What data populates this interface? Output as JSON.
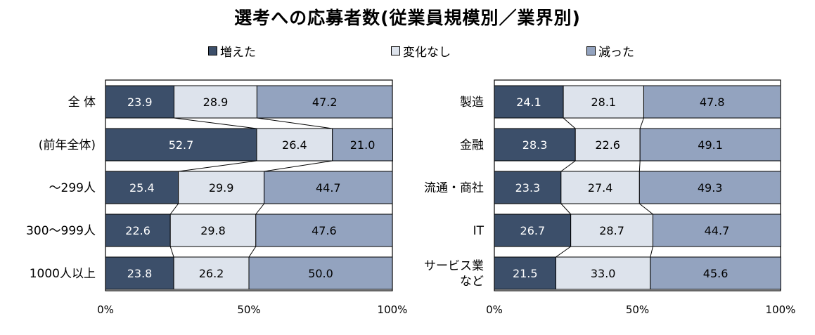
{
  "title": "選考への応募者数(従業員規模別／業界別)",
  "legend": [
    {
      "label": "増えた",
      "color": "#3c4f6a"
    },
    {
      "label": "変化なし",
      "color": "#dde3ec"
    },
    {
      "label": "減った",
      "color": "#93a3bf"
    }
  ],
  "chart_data": [
    {
      "type": "bar",
      "orientation": "horizontal-stacked-100",
      "series_names": [
        "増えた",
        "変化なし",
        "減った"
      ],
      "categories": [
        "全 体",
        "(前年全体)",
        "～299人",
        "300～999人",
        "1000人以上"
      ],
      "series": [
        {
          "name": "増えた",
          "values": [
            23.9,
            52.7,
            25.4,
            22.6,
            23.8
          ]
        },
        {
          "name": "変化なし",
          "values": [
            28.9,
            26.4,
            29.9,
            29.8,
            26.2
          ]
        },
        {
          "name": "減った",
          "values": [
            47.2,
            21.0,
            44.7,
            47.6,
            50.0
          ]
        }
      ],
      "labels": [
        [
          "23.9",
          "28.9",
          "47.2"
        ],
        [
          "52.7",
          "26.4",
          "21.0"
        ],
        [
          "25.4",
          "29.9",
          "44.7"
        ],
        [
          "22.6",
          "29.8",
          "47.6"
        ],
        [
          "23.8",
          "26.2",
          "50.0"
        ]
      ],
      "xticks": [
        "0%",
        "50%",
        "100%"
      ],
      "xlim": [
        0,
        100
      ]
    },
    {
      "type": "bar",
      "orientation": "horizontal-stacked-100",
      "series_names": [
        "増えた",
        "変化なし",
        "減った"
      ],
      "categories": [
        "製造",
        "金融",
        "流通・商社",
        "IT",
        "サービス業など"
      ],
      "category_lines": [
        [
          "製造"
        ],
        [
          "金融"
        ],
        [
          "流通・商社"
        ],
        [
          "IT"
        ],
        [
          "サービス業",
          "など"
        ]
      ],
      "series": [
        {
          "name": "増えた",
          "values": [
            24.1,
            28.3,
            23.3,
            26.7,
            21.5
          ]
        },
        {
          "name": "変化なし",
          "values": [
            28.1,
            22.6,
            27.4,
            28.7,
            33.0
          ]
        },
        {
          "name": "減った",
          "values": [
            47.8,
            49.1,
            49.3,
            44.7,
            45.6
          ]
        }
      ],
      "labels": [
        [
          "24.1",
          "28.1",
          "47.8"
        ],
        [
          "28.3",
          "22.6",
          "49.1"
        ],
        [
          "23.3",
          "27.4",
          "49.3"
        ],
        [
          "26.7",
          "28.7",
          "44.7"
        ],
        [
          "21.5",
          "33.0",
          "45.6"
        ]
      ],
      "xticks": [
        "0%",
        "50%",
        "100%"
      ],
      "xlim": [
        0,
        100
      ]
    }
  ]
}
